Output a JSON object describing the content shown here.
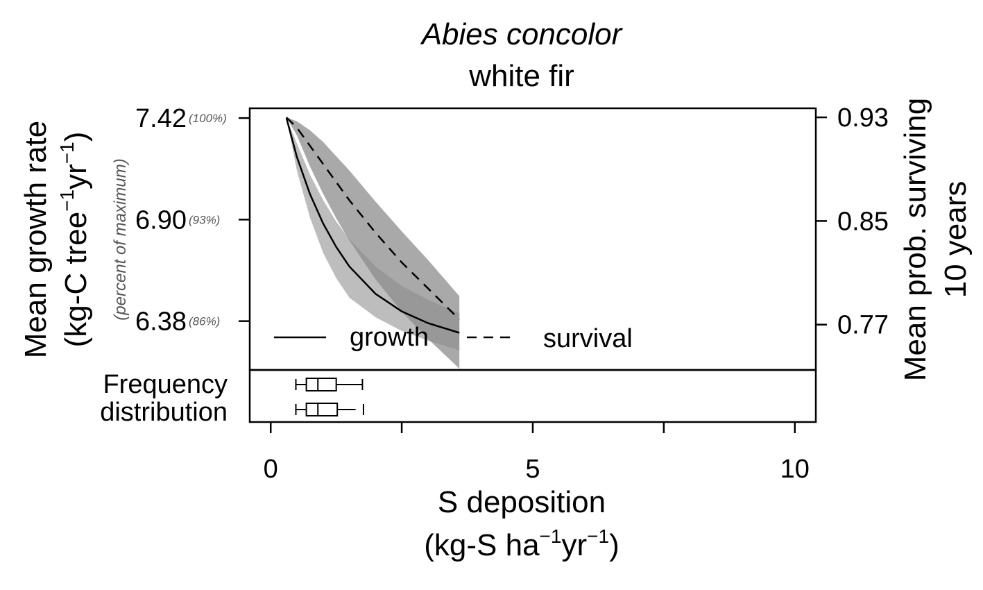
{
  "chart_data": {
    "type": "line",
    "title": "Abies concolor",
    "subtitle": "white fir",
    "xlabel": "S deposition",
    "xlabel_units": {
      "base": "(kg-S ha",
      "sup1": "−1",
      "mid": "yr",
      "sup2": "−1",
      "end": ")"
    },
    "ylabel_left": "Mean growth rate",
    "ylabel_left_units": {
      "base": "(kg-C tree",
      "sup1": "−1",
      "mid": "yr",
      "sup2": "−1",
      "end": ")"
    },
    "ylabel_left_secondary": "(percent of maximum)",
    "ylabel_right_line1": "Mean prob. surviving",
    "ylabel_right_line2": "10 years",
    "xlim": [
      -0.4,
      10.4
    ],
    "ylim_left": [
      6.13,
      7.47
    ],
    "ylim_right": [
      0.735,
      0.937
    ],
    "x_ticks": [
      {
        "value": 0,
        "label": "0"
      },
      {
        "value": 2.5,
        "label": ""
      },
      {
        "value": 5,
        "label": "5"
      },
      {
        "value": 7.5,
        "label": ""
      },
      {
        "value": 10,
        "label": "10"
      }
    ],
    "y_ticks_left": [
      {
        "value": 7.42,
        "label": "7.42",
        "pct": "(100%)"
      },
      {
        "value": 6.9,
        "label": "6.90",
        "pct": "(93%)"
      },
      {
        "value": 6.38,
        "label": "6.38",
        "pct": "(86%)"
      }
    ],
    "y_ticks_right": [
      {
        "value": 0.93,
        "label": "0.93"
      },
      {
        "value": 0.85,
        "label": "0.85"
      },
      {
        "value": 0.77,
        "label": "0.77"
      }
    ],
    "series": [
      {
        "name": "growth",
        "axis": "left",
        "style": "solid",
        "x": [
          0.3,
          0.5,
          0.75,
          1.0,
          1.25,
          1.5,
          2.0,
          2.5,
          3.0,
          3.6
        ],
        "y": [
          7.42,
          7.22,
          7.03,
          6.88,
          6.76,
          6.66,
          6.52,
          6.43,
          6.37,
          6.32
        ],
        "ci_lower": [
          7.42,
          7.15,
          6.91,
          6.73,
          6.6,
          6.5,
          6.4,
          6.33,
          6.28,
          6.23
        ],
        "ci_upper": [
          7.42,
          7.29,
          7.13,
          7.0,
          6.89,
          6.8,
          6.66,
          6.56,
          6.49,
          6.42
        ]
      },
      {
        "name": "survival",
        "axis": "right",
        "style": "dashed",
        "x": [
          0.3,
          0.5,
          0.75,
          1.0,
          1.25,
          1.5,
          2.0,
          2.5,
          3.0,
          3.6
        ],
        "y": [
          0.93,
          0.922,
          0.908,
          0.894,
          0.88,
          0.866,
          0.841,
          0.818,
          0.798,
          0.774
        ],
        "ci_lower": [
          0.93,
          0.916,
          0.892,
          0.871,
          0.852,
          0.835,
          0.805,
          0.78,
          0.759,
          0.736
        ],
        "ci_upper": [
          0.93,
          0.927,
          0.92,
          0.911,
          0.9,
          0.889,
          0.865,
          0.842,
          0.82,
          0.792
        ]
      }
    ],
    "legend": {
      "placement": "bottom-left",
      "items": [
        {
          "label": "growth",
          "style": "solid"
        },
        {
          "label": "survival",
          "style": "dashed"
        }
      ]
    },
    "frequency_distribution": {
      "label_line1": "Frequency",
      "label_line2": "distribution",
      "boxplots": [
        {
          "whisker_low": 0.48,
          "q1": 0.68,
          "median": 0.9,
          "q3": 1.25,
          "whisker_high": 1.75
        },
        {
          "whisker_low": 0.48,
          "q1": 0.68,
          "median": 0.9,
          "q3": 1.27,
          "whisker_high": 1.77,
          "tail_dash": [
            1.5,
            1.62
          ]
        }
      ]
    },
    "grid": false,
    "colors": {
      "band_light": "#bdbdbd",
      "band_dark": "#8c8c8c",
      "line": "#000000",
      "percent_text": "#555555"
    }
  }
}
